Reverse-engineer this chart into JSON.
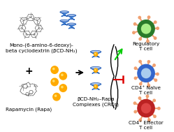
{
  "bg_color": "#ffffff",
  "bcd_label": "Mono-(6-amino-6-deoxy)-\nbeta cyclodextrin (βCD-NH₂)",
  "rapa_label": "Rapamycin (Rapa)",
  "complex_label": "βCD-NH₂–Rapa\nComplexes (CRCs)",
  "cell1_label": "Regulatory\nT cell",
  "cell2_label": "CD4⁺ Naïve\nT cell",
  "cell3_label": "CD4⁺ Effector\nT cell",
  "plus_symbol": "+",
  "green_arrow_color": "#00cc00",
  "red_arrow_color": "#dd0000",
  "black_color": "#000000",
  "cell1_outer": "#2a7a2a",
  "cell1_inner": "#aaee88",
  "cell2_outer": "#3366cc",
  "cell2_inner": "#aaccee",
  "cell3_outer": "#bb2222",
  "cell3_inner": "#dd4444",
  "bcd_cup_color": "#4488dd",
  "bcd_cup_dark": "#2255aa",
  "bcd_cup_light": "#99bbee",
  "rapa_dot_color": "#ffaa00",
  "dendrite_color": "#f0a070",
  "mol_line_color": "#555555",
  "font_size": 5.2,
  "font_size_plus": 10
}
